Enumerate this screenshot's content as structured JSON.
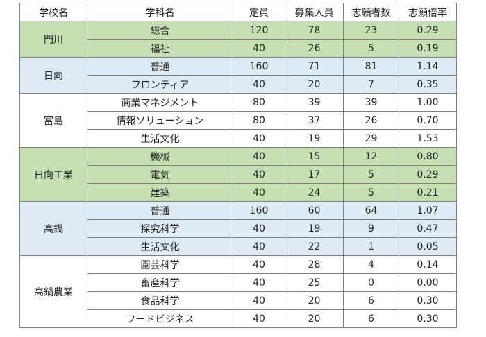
{
  "headers": [
    "学校名",
    "学科名",
    "定員",
    "募集人員",
    "志願者数",
    "志願倍率"
  ],
  "schools": [
    {
      "name": "門川",
      "color": "#c6e0b4",
      "rows": [
        {
          "dept": "総合",
          "capacity": "120",
          "recruit": "78",
          "applicants": "23",
          "ratio": "0.29"
        },
        {
          "dept": "福祉",
          "capacity": "40",
          "recruit": "26",
          "applicants": "5",
          "ratio": "0.19"
        }
      ]
    },
    {
      "name": "日向",
      "color": "#ddebf7",
      "rows": [
        {
          "dept": "普通",
          "capacity": "160",
          "recruit": "71",
          "applicants": "81",
          "ratio": "1.14"
        },
        {
          "dept": "フロンティア",
          "capacity": "40",
          "recruit": "20",
          "applicants": "7",
          "ratio": "0.35"
        }
      ]
    },
    {
      "name": "富島",
      "color": "#ffffff",
      "rows": [
        {
          "dept": "商業マネジメント",
          "capacity": "80",
          "recruit": "39",
          "applicants": "39",
          "ratio": "1.00"
        },
        {
          "dept": "情報ソリューション",
          "capacity": "80",
          "recruit": "37",
          "applicants": "26",
          "ratio": "0.70"
        },
        {
          "dept": "生活文化",
          "capacity": "40",
          "recruit": "19",
          "applicants": "29",
          "ratio": "1.53"
        }
      ]
    },
    {
      "name": "日向工業",
      "color": "#c6e0b4",
      "rows": [
        {
          "dept": "機械",
          "capacity": "40",
          "recruit": "15",
          "applicants": "12",
          "ratio": "0.80"
        },
        {
          "dept": "電気",
          "capacity": "40",
          "recruit": "17",
          "applicants": "5",
          "ratio": "0.29"
        },
        {
          "dept": "建築",
          "capacity": "40",
          "recruit": "24",
          "applicants": "5",
          "ratio": "0.21"
        }
      ]
    },
    {
      "name": "高鍋",
      "color": "#ddebf7",
      "rows": [
        {
          "dept": "普通",
          "capacity": "160",
          "recruit": "60",
          "applicants": "64",
          "ratio": "1.07"
        },
        {
          "dept": "探究科学",
          "capacity": "40",
          "recruit": "19",
          "applicants": "9",
          "ratio": "0.47"
        },
        {
          "dept": "生活文化",
          "capacity": "40",
          "recruit": "22",
          "applicants": "1",
          "ratio": "0.05"
        }
      ]
    },
    {
      "name": "高鍋農業",
      "color": "#ffffff",
      "rows": [
        {
          "dept": "園芸科学",
          "capacity": "40",
          "recruit": "28",
          "applicants": "4",
          "ratio": "0.14"
        },
        {
          "dept": "畜産科学",
          "capacity": "40",
          "recruit": "25",
          "applicants": "0",
          "ratio": "0.00"
        },
        {
          "dept": "食品科学",
          "capacity": "40",
          "recruit": "20",
          "applicants": "6",
          "ratio": "0.30"
        },
        {
          "dept": "フードビジネス",
          "capacity": "40",
          "recruit": "20",
          "applicants": "6",
          "ratio": "0.30"
        }
      ]
    }
  ]
}
